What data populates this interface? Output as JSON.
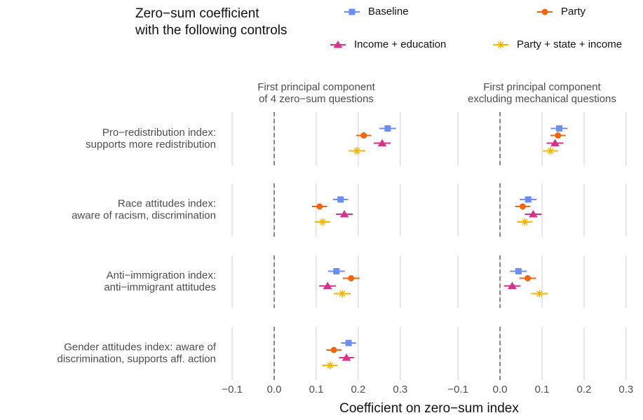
{
  "chart_data": {
    "type": "coefplot",
    "legend_title": [
      "Zero−sum coefficient",
      "with the following controls"
    ],
    "x_label": "Coefficient on zero−sum index",
    "categories": [
      [
        "Pro−redistribution index:",
        "supports more redistribution"
      ],
      [
        "Race attitudes index:",
        "aware of racism, discrimination"
      ],
      [
        "Anti−immigration index:",
        "anti−immigrant attitudes"
      ],
      [
        "Gender attitudes index: aware of",
        "discrimination, supports aff. action"
      ]
    ],
    "series": [
      {
        "name": "Baseline",
        "color": "#6b8ef2",
        "marker": "square"
      },
      {
        "name": "Party",
        "color": "#f0650f",
        "marker": "circle"
      },
      {
        "name": "Income + education",
        "color": "#d6338a",
        "marker": "triangle"
      },
      {
        "name": "Party + state + income",
        "color": "#f5b400",
        "marker": "asterisk"
      }
    ],
    "xlim": [
      -0.122,
      0.322
    ],
    "xticks": [
      {
        "value": -0.1,
        "label": "−0.1"
      },
      {
        "value": 0,
        "label": "0.0"
      },
      0.1,
      0.2,
      0.3
    ],
    "panels": [
      {
        "title": [
          "First principal component",
          "of 4 zero−sum questions"
        ],
        "series": [
          {
            "values": [
              0.27,
              0.158,
              0.148,
              0.177
            ],
            "errors": [
              0.02,
              0.018,
              0.02,
              0.018
            ]
          },
          {
            "values": [
              0.213,
              0.108,
              0.183,
              0.142
            ],
            "errors": [
              0.018,
              0.018,
              0.02,
              0.018
            ]
          },
          {
            "values": [
              0.257,
              0.167,
              0.127,
              0.172
            ],
            "errors": [
              0.02,
              0.02,
              0.02,
              0.018
            ]
          },
          {
            "values": [
              0.197,
              0.115,
              0.162,
              0.133
            ],
            "errors": [
              0.02,
              0.018,
              0.02,
              0.018
            ]
          }
        ]
      },
      {
        "title": [
          "First principal component",
          "excluding mechanical questions"
        ],
        "series": [
          {
            "values": [
              0.141,
              0.067,
              0.044,
              null
            ],
            "errors": [
              0.02,
              0.02,
              0.02,
              null
            ]
          },
          {
            "values": [
              0.138,
              0.054,
              0.066,
              null
            ],
            "errors": [
              0.018,
              0.018,
              0.02,
              null
            ]
          },
          {
            "values": [
              0.131,
              0.079,
              0.029,
              null
            ],
            "errors": [
              0.02,
              0.02,
              0.02,
              null
            ]
          },
          {
            "values": [
              0.12,
              0.059,
              0.094,
              null
            ],
            "errors": [
              0.018,
              0.018,
              0.02,
              null
            ]
          }
        ]
      }
    ]
  }
}
